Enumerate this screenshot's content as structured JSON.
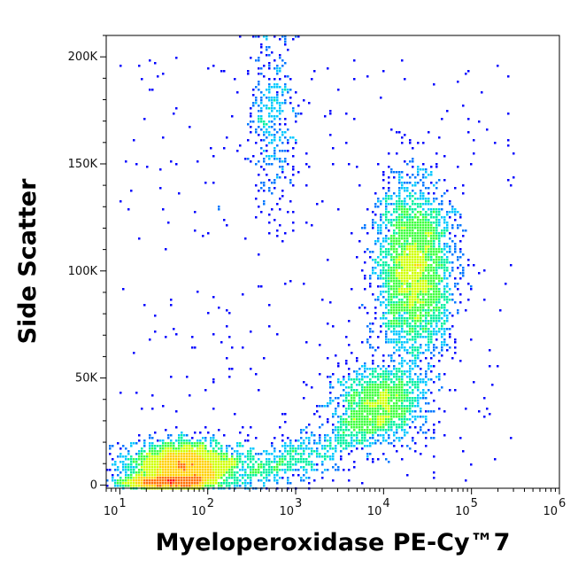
{
  "chart_data": {
    "type": "scatter",
    "subtype": "flow-cytometry-density-dot-plot",
    "title": "",
    "xlabel": "Myeloperoxidase PE-Cy™7",
    "ylabel": "Side Scatter",
    "x_scale": "log",
    "y_scale": "linear",
    "xlim": [
      7,
      1000000
    ],
    "ylim": [
      -1500,
      210000
    ],
    "x_ticks": [
      {
        "value": 10,
        "base": "10",
        "exp": "1"
      },
      {
        "value": 100,
        "base": "10",
        "exp": "2"
      },
      {
        "value": 1000,
        "base": "10",
        "exp": "3"
      },
      {
        "value": 10000,
        "base": "10",
        "exp": "4"
      },
      {
        "value": 100000,
        "base": "10",
        "exp": "5"
      },
      {
        "value": 1000000,
        "base": "10",
        "exp": "6"
      }
    ],
    "y_ticks": [
      {
        "value": 0,
        "label": "0"
      },
      {
        "value": 50000,
        "label": "50K"
      },
      {
        "value": 100000,
        "label": "100K"
      },
      {
        "value": 150000,
        "label": "150K"
      },
      {
        "value": 200000,
        "label": "200K"
      }
    ],
    "grid": false,
    "legend": "none",
    "density_colors": [
      "#0000ff",
      "#0077ff",
      "#00c8ff",
      "#00f0a0",
      "#40ff40",
      "#d0ff00",
      "#ffd000",
      "#ff7000",
      "#ff1000"
    ],
    "populations": [
      {
        "x_log10_center": 1.75,
        "y_center": 9000,
        "x_log10_sd": 0.32,
        "y_sd": 5500,
        "weight": 0.3
      },
      {
        "x_log10_center": 1.55,
        "y_center": 1500,
        "x_log10_sd": 0.25,
        "y_sd": 1200,
        "weight": 0.12
      },
      {
        "x_log10_center": 4.35,
        "y_center": 100000,
        "x_log10_sd": 0.22,
        "y_sd": 20000,
        "weight": 0.32
      },
      {
        "x_log10_center": 3.95,
        "y_center": 38000,
        "x_log10_sd": 0.28,
        "y_sd": 9000,
        "weight": 0.12
      },
      {
        "x_log10_center": 2.72,
        "y_center": 170000,
        "x_log10_sd": 0.14,
        "y_sd": 22000,
        "weight": 0.04
      }
    ]
  }
}
